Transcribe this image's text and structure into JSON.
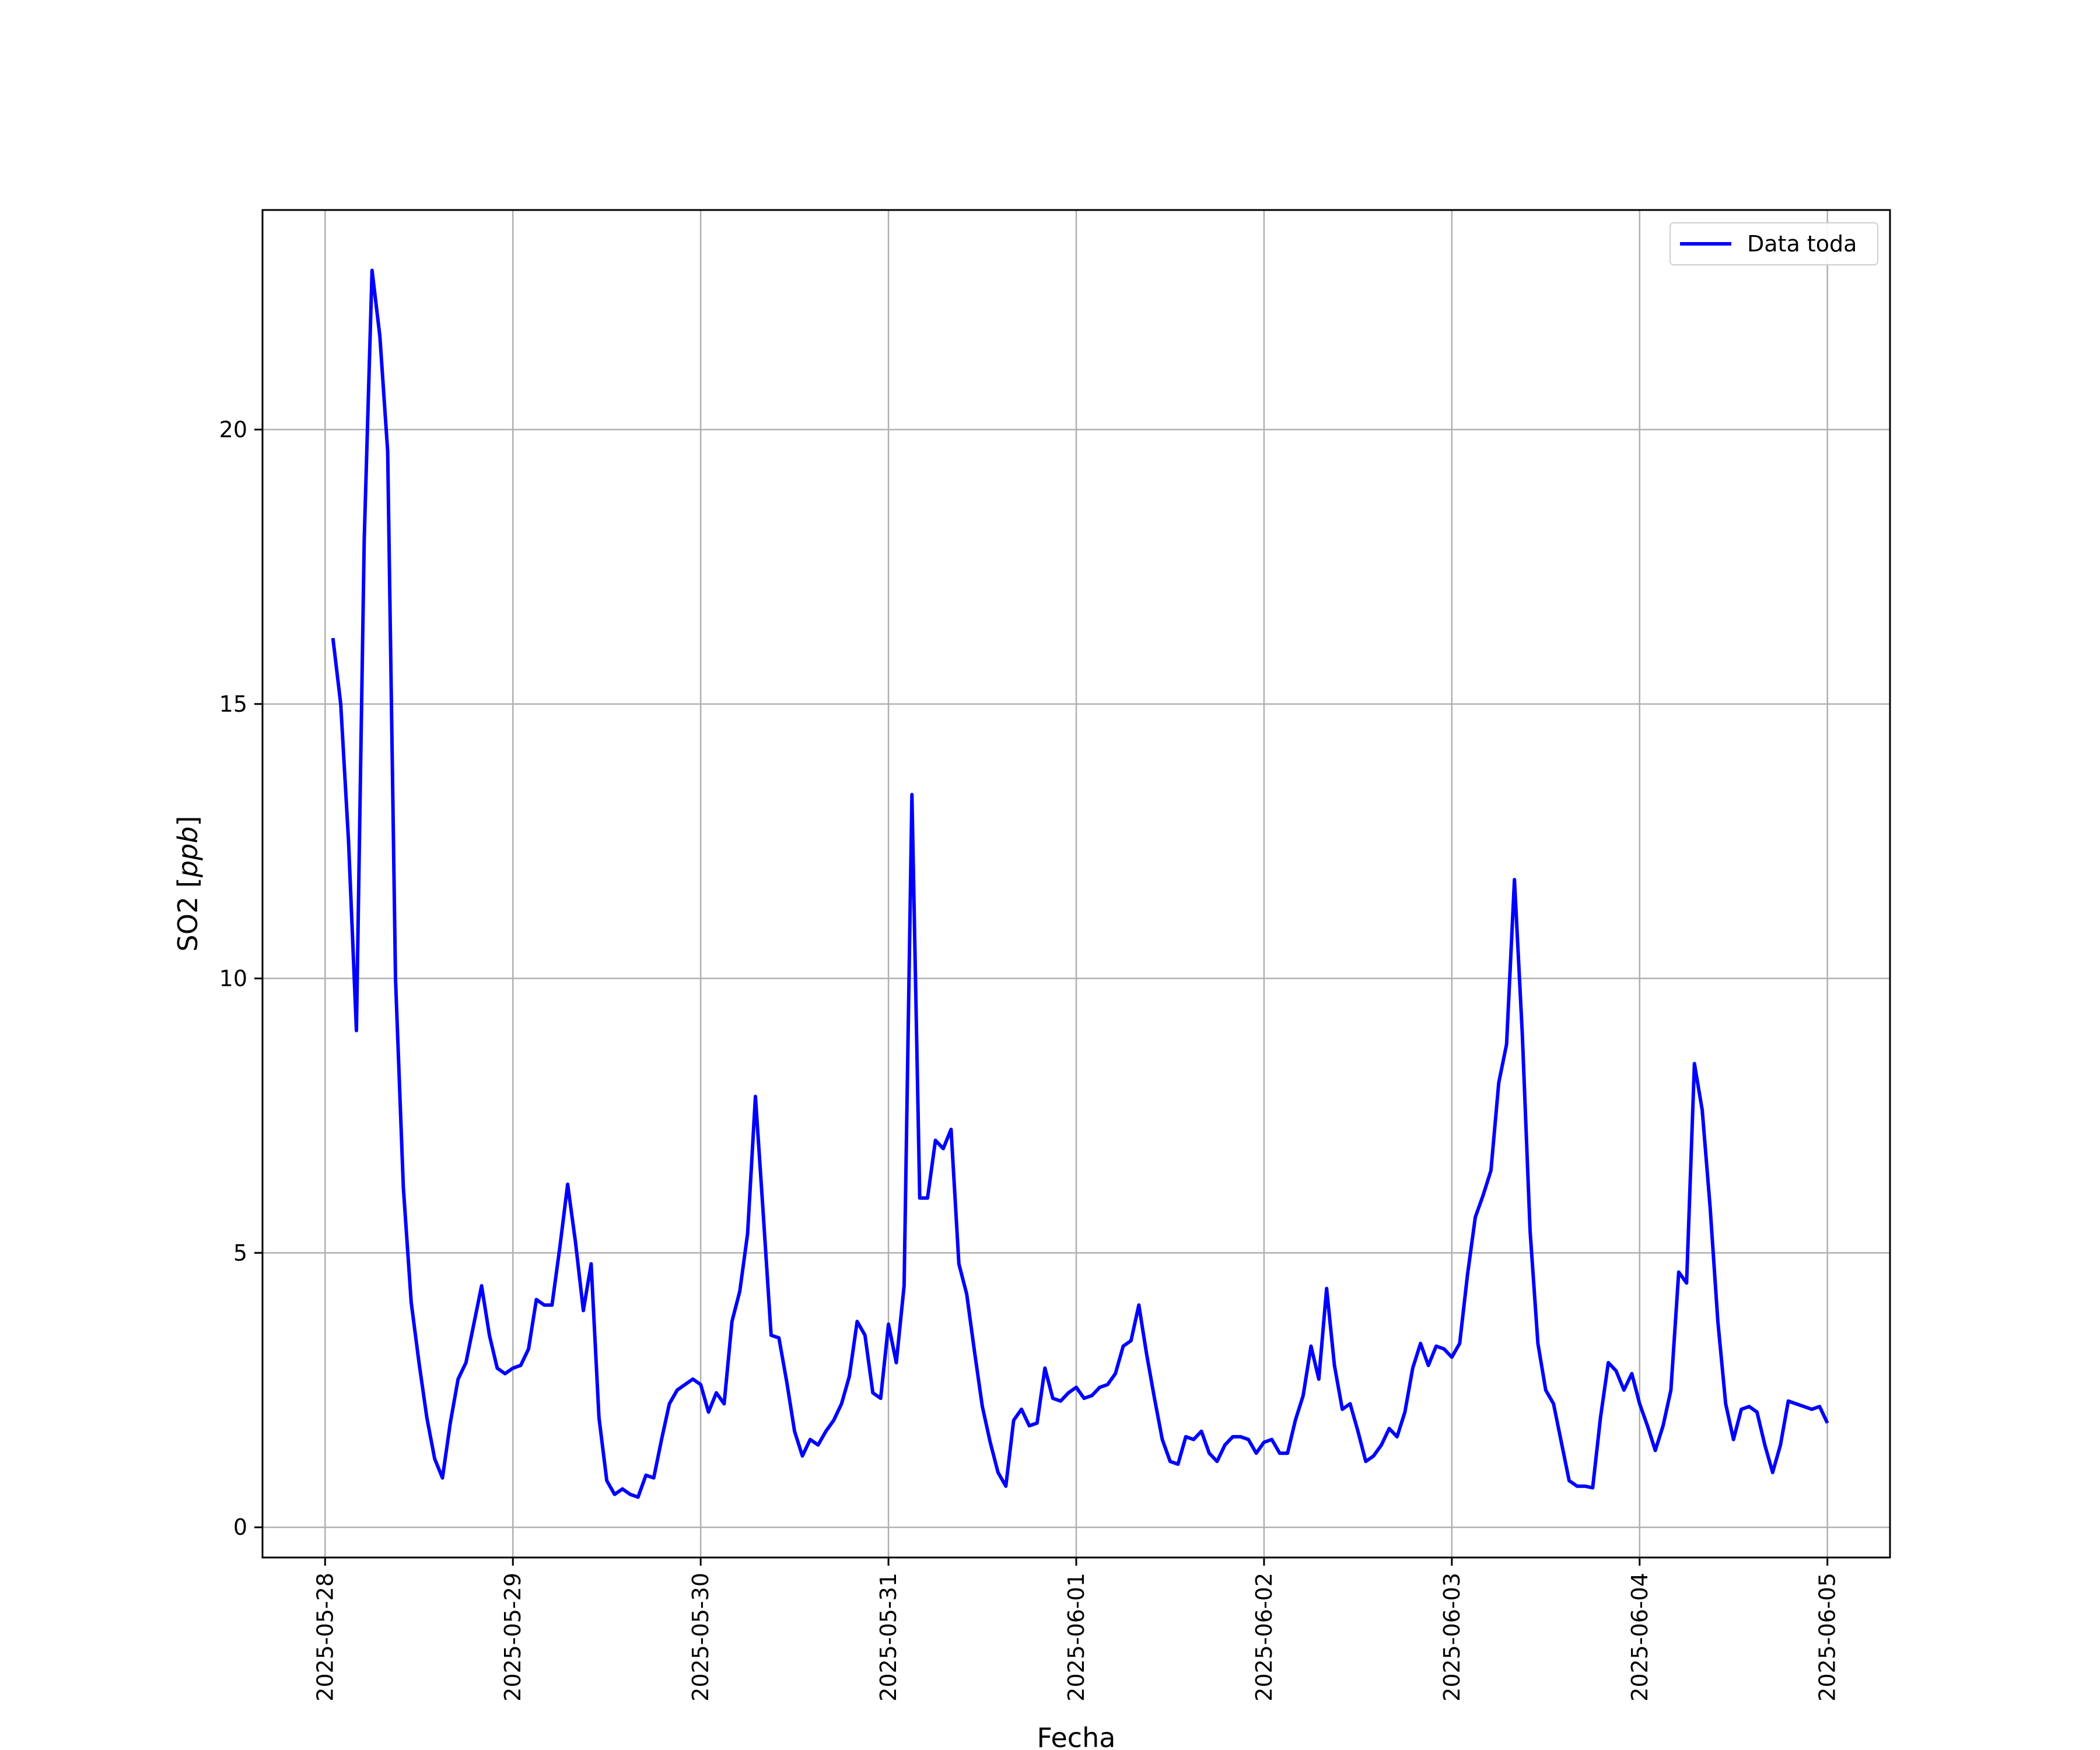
{
  "chart_data": {
    "type": "line",
    "title": "",
    "xlabel": "Fecha",
    "ylabel": "SO2 [ppb]",
    "ylabel_parts": {
      "plain": "SO2 [",
      "italic": "ppb",
      "close": "]"
    },
    "xlim": [
      "2025-05-27T16:00",
      "2025-06-05T08:00"
    ],
    "ylim": [
      -0.55,
      24.0
    ],
    "x_ticks": [
      "2025-05-28",
      "2025-05-29",
      "2025-05-30",
      "2025-05-31",
      "2025-06-01",
      "2025-06-02",
      "2025-06-03",
      "2025-06-04",
      "2025-06-05"
    ],
    "y_ticks": [
      0,
      5,
      10,
      15,
      20
    ],
    "grid": true,
    "legend": {
      "position": "top-right",
      "entries": [
        "Data toda"
      ]
    },
    "colors": {
      "series": "#0000ff",
      "grid": "#b0b0b0",
      "axes": "#000000"
    },
    "series": [
      {
        "name": "Data toda",
        "x": [
          "2025-05-28 01:00",
          "2025-05-28 02:00",
          "2025-05-28 03:00",
          "2025-05-28 04:00",
          "2025-05-28 05:00",
          "2025-05-28 06:00",
          "2025-05-28 07:00",
          "2025-05-28 08:00",
          "2025-05-28 09:00",
          "2025-05-28 10:00",
          "2025-05-28 11:00",
          "2025-05-28 12:00",
          "2025-05-28 13:00",
          "2025-05-28 14:00",
          "2025-05-28 15:00",
          "2025-05-28 16:00",
          "2025-05-28 17:00",
          "2025-05-28 18:00",
          "2025-05-28 19:00",
          "2025-05-28 20:00",
          "2025-05-28 21:00",
          "2025-05-28 22:00",
          "2025-05-28 23:00",
          "2025-05-29 00:00",
          "2025-05-29 01:00",
          "2025-05-29 02:00",
          "2025-05-29 03:00",
          "2025-05-29 04:00",
          "2025-05-29 05:00",
          "2025-05-29 06:00",
          "2025-05-29 07:00",
          "2025-05-29 08:00",
          "2025-05-29 09:00",
          "2025-05-29 10:00",
          "2025-05-29 11:00",
          "2025-05-29 12:00",
          "2025-05-29 13:00",
          "2025-05-29 14:00",
          "2025-05-29 15:00",
          "2025-05-29 16:00",
          "2025-05-29 17:00",
          "2025-05-29 18:00",
          "2025-05-29 19:00",
          "2025-05-29 20:00",
          "2025-05-29 21:00",
          "2025-05-29 22:00",
          "2025-05-29 23:00",
          "2025-05-30 00:00",
          "2025-05-30 01:00",
          "2025-05-30 02:00",
          "2025-05-30 03:00",
          "2025-05-30 04:00",
          "2025-05-30 05:00",
          "2025-05-30 06:00",
          "2025-05-30 07:00",
          "2025-05-30 08:00",
          "2025-05-30 09:00",
          "2025-05-30 10:00",
          "2025-05-30 11:00",
          "2025-05-30 12:00",
          "2025-05-30 13:00",
          "2025-05-30 14:00",
          "2025-05-30 15:00",
          "2025-05-30 16:00",
          "2025-05-30 17:00",
          "2025-05-30 18:00",
          "2025-05-30 19:00",
          "2025-05-30 20:00",
          "2025-05-30 21:00",
          "2025-05-30 22:00",
          "2025-05-30 23:00",
          "2025-05-31 00:00",
          "2025-05-31 01:00",
          "2025-05-31 02:00",
          "2025-05-31 03:00",
          "2025-05-31 04:00",
          "2025-05-31 05:00",
          "2025-05-31 06:00",
          "2025-05-31 07:00",
          "2025-05-31 08:00",
          "2025-05-31 09:00",
          "2025-05-31 10:00",
          "2025-05-31 11:00",
          "2025-05-31 12:00",
          "2025-05-31 13:00",
          "2025-05-31 14:00",
          "2025-05-31 15:00",
          "2025-05-31 16:00",
          "2025-05-31 17:00",
          "2025-05-31 18:00",
          "2025-05-31 19:00",
          "2025-05-31 20:00",
          "2025-05-31 21:00",
          "2025-05-31 22:00",
          "2025-05-31 23:00",
          "2025-06-01 00:00",
          "2025-06-01 01:00",
          "2025-06-01 02:00",
          "2025-06-01 03:00",
          "2025-06-01 04:00",
          "2025-06-01 05:00",
          "2025-06-01 06:00",
          "2025-06-01 07:00",
          "2025-06-01 08:00",
          "2025-06-01 09:00",
          "2025-06-01 10:00",
          "2025-06-01 11:00",
          "2025-06-01 12:00",
          "2025-06-01 13:00",
          "2025-06-01 14:00",
          "2025-06-01 15:00",
          "2025-06-01 16:00",
          "2025-06-01 17:00",
          "2025-06-01 18:00",
          "2025-06-01 19:00",
          "2025-06-01 20:00",
          "2025-06-01 21:00",
          "2025-06-01 22:00",
          "2025-06-01 23:00",
          "2025-06-02 00:00",
          "2025-06-02 01:00",
          "2025-06-02 02:00",
          "2025-06-02 03:00",
          "2025-06-02 04:00",
          "2025-06-02 05:00",
          "2025-06-02 06:00",
          "2025-06-02 07:00",
          "2025-06-02 08:00",
          "2025-06-02 09:00",
          "2025-06-02 10:00",
          "2025-06-02 11:00",
          "2025-06-02 12:00",
          "2025-06-02 13:00",
          "2025-06-02 14:00",
          "2025-06-02 15:00",
          "2025-06-02 16:00",
          "2025-06-02 17:00",
          "2025-06-02 18:00",
          "2025-06-02 19:00",
          "2025-06-02 20:00",
          "2025-06-02 21:00",
          "2025-06-02 22:00",
          "2025-06-02 23:00",
          "2025-06-03 00:00",
          "2025-06-03 01:00",
          "2025-06-03 02:00",
          "2025-06-03 03:00",
          "2025-06-03 04:00",
          "2025-06-03 05:00",
          "2025-06-03 06:00",
          "2025-06-03 07:00",
          "2025-06-03 08:00",
          "2025-06-03 09:00",
          "2025-06-03 10:00",
          "2025-06-03 11:00",
          "2025-06-03 12:00",
          "2025-06-03 13:00",
          "2025-06-03 14:00",
          "2025-06-03 15:00",
          "2025-06-03 16:00",
          "2025-06-03 17:00",
          "2025-06-03 18:00",
          "2025-06-03 19:00",
          "2025-06-03 20:00",
          "2025-06-03 21:00",
          "2025-06-03 22:00",
          "2025-06-03 23:00",
          "2025-06-04 00:00",
          "2025-06-04 01:00",
          "2025-06-04 02:00",
          "2025-06-04 03:00",
          "2025-06-04 04:00",
          "2025-06-04 05:00",
          "2025-06-04 06:00",
          "2025-06-04 07:00",
          "2025-06-04 08:00",
          "2025-06-04 09:00",
          "2025-06-04 10:00",
          "2025-06-04 11:00",
          "2025-06-04 12:00",
          "2025-06-04 13:00",
          "2025-06-04 14:00",
          "2025-06-04 15:00",
          "2025-06-04 16:00",
          "2025-06-04 17:00",
          "2025-06-04 18:00",
          "2025-06-04 19:00",
          "2025-06-04 20:00",
          "2025-06-04 21:00",
          "2025-06-04 22:00",
          "2025-06-04 23:00",
          "2025-06-05 00:00"
        ],
        "y": [
          16.2,
          15.0,
          12.5,
          9.05,
          18.0,
          22.9,
          21.7,
          19.6,
          10.0,
          6.2,
          4.1,
          3.0,
          2.0,
          1.25,
          0.9,
          1.9,
          2.7,
          3.0,
          3.7,
          4.4,
          3.5,
          2.9,
          2.8,
          2.9,
          2.95,
          3.25,
          4.15,
          4.05,
          4.05,
          5.1,
          6.25,
          5.2,
          3.95,
          4.8,
          2.0,
          0.85,
          0.6,
          0.7,
          0.6,
          0.55,
          0.95,
          0.9,
          1.6,
          2.25,
          2.5,
          2.6,
          2.7,
          2.6,
          2.1,
          2.45,
          2.25,
          3.75,
          4.3,
          5.35,
          7.85,
          5.7,
          3.5,
          3.45,
          2.65,
          1.75,
          1.3,
          1.6,
          1.5,
          1.75,
          1.95,
          2.25,
          2.75,
          3.75,
          3.5,
          2.45,
          2.35,
          3.7,
          3.0,
          4.4,
          13.35,
          6.0,
          6.0,
          7.05,
          6.9,
          7.25,
          4.8,
          4.25,
          3.2,
          2.2,
          1.55,
          1.0,
          0.75,
          1.95,
          2.15,
          1.85,
          1.9,
          2.9,
          2.35,
          2.3,
          2.45,
          2.55,
          2.35,
          2.4,
          2.55,
          2.6,
          2.8,
          3.3,
          3.4,
          4.05,
          3.15,
          2.35,
          1.6,
          1.2,
          1.15,
          1.65,
          1.6,
          1.75,
          1.35,
          1.2,
          1.5,
          1.65,
          1.65,
          1.6,
          1.35,
          1.55,
          1.6,
          1.35,
          1.35,
          1.95,
          2.4,
          3.3,
          2.7,
          4.35,
          2.95,
          2.15,
          2.25,
          1.75,
          1.2,
          1.3,
          1.5,
          1.8,
          1.65,
          2.1,
          2.9,
          3.35,
          2.95,
          3.3,
          3.25,
          3.1,
          3.35,
          4.6,
          5.65,
          6.05,
          6.5,
          8.1,
          8.8,
          11.8,
          9.0,
          5.4,
          3.35,
          2.5,
          2.25,
          1.55,
          0.85,
          0.75,
          0.75,
          0.72,
          2.0,
          3.0,
          2.85,
          2.5,
          2.8,
          2.25,
          1.85,
          1.4,
          1.85,
          2.5,
          4.65,
          4.45,
          8.45,
          7.6,
          5.85,
          3.75,
          2.25,
          1.6,
          2.15,
          2.2,
          2.1,
          1.5,
          1.0,
          1.5,
          2.3,
          2.25,
          2.2,
          2.15,
          2.2,
          1.9
        ]
      }
    ]
  }
}
